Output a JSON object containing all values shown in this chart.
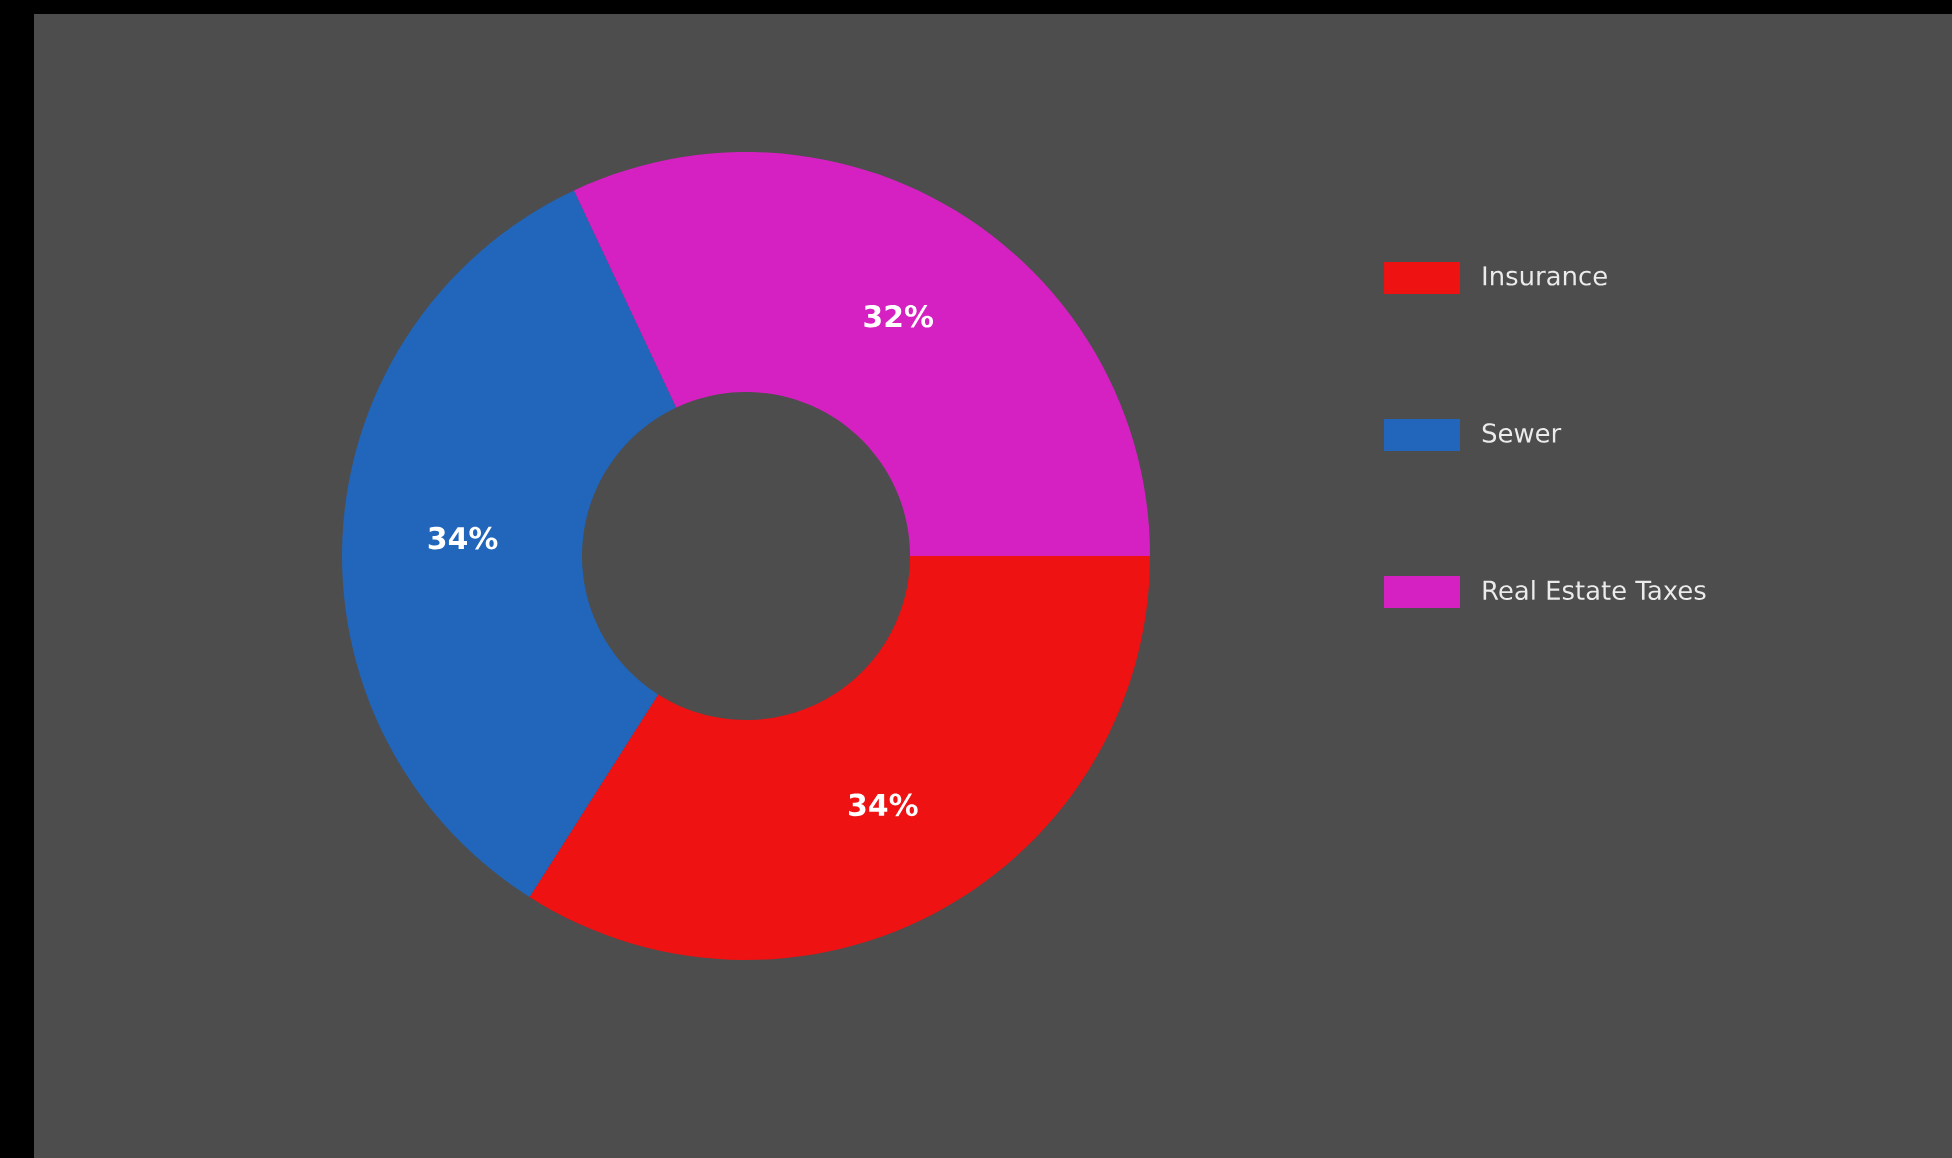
{
  "chart_data": {
    "type": "donut",
    "categories": [
      "Insurance",
      "Sewer",
      "Real Estate Taxes"
    ],
    "values": [
      34,
      34,
      32
    ],
    "colors": [
      "#ee1212",
      "#2266bb",
      "#d621c2"
    ],
    "value_labels": [
      "34%",
      "34%",
      "32%"
    ],
    "legend": "right"
  }
}
